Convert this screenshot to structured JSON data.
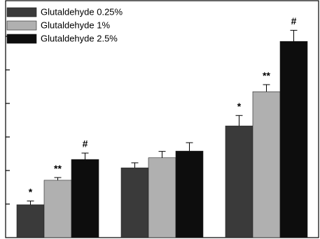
{
  "chart_data": {
    "type": "bar",
    "categories": [
      null,
      null,
      null
    ],
    "series": [
      {
        "name": "Glutaldehyde 0.25%",
        "color": "#3a3a3a",
        "values": [
          0.98,
          2.08,
          3.33
        ],
        "errors": [
          0.11,
          0.15,
          0.31
        ],
        "annotations": [
          "*",
          null,
          "*"
        ]
      },
      {
        "name": "Glutaldehyde 1%",
        "color": "#b0b0b0",
        "values": [
          1.71,
          2.38,
          4.35
        ],
        "errors": [
          0.08,
          0.19,
          0.21
        ],
        "annotations": [
          "**",
          null,
          "**"
        ]
      },
      {
        "name": "Glutaldehyde 2.5%",
        "color": "#0d0d0d",
        "values": [
          2.33,
          2.58,
          5.85
        ],
        "errors": [
          0.19,
          0.25,
          0.33
        ],
        "annotations": [
          "#",
          null,
          "#"
        ]
      }
    ],
    "ylim": [
      0,
      7
    ],
    "yticks": [
      1,
      2,
      3,
      4,
      5,
      6
    ],
    "legend": "top-left"
  }
}
